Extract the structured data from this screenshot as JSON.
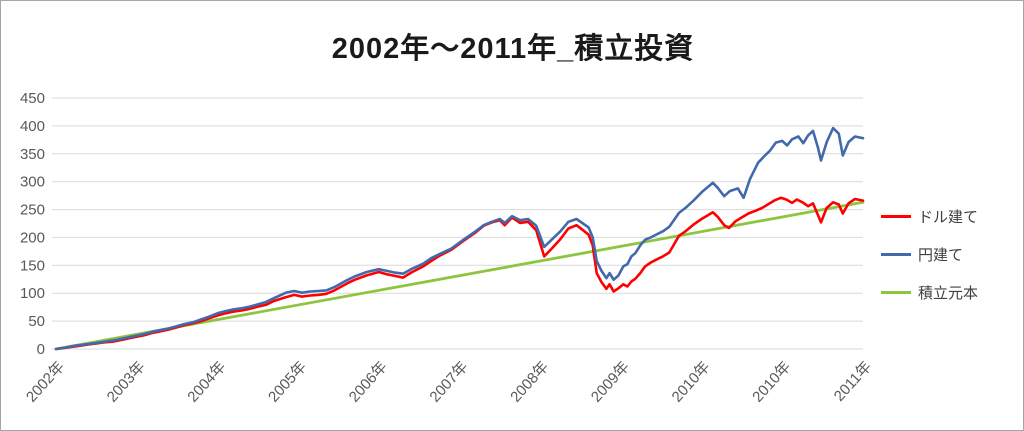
{
  "title": "2002年〜2011年_積立投資",
  "frame": {
    "border_color": "#a6a6a6",
    "background": "#ffffff"
  },
  "axes": {
    "y_tick_labels": [
      "0",
      "50",
      "100",
      "150",
      "200",
      "250",
      "300",
      "350",
      "400",
      "450"
    ],
    "x_tick_labels": [
      "2002年",
      "2003年",
      "2004年",
      "2005年",
      "2006年",
      "2007年",
      "2008年",
      "2009年",
      "2010年",
      "2010年",
      "2011年"
    ],
    "label_color": "#595959",
    "gridline_color": "#d9d9d9"
  },
  "chart_data": {
    "type": "line",
    "title": "2002年〜2011年_積立投資",
    "xlabel": "",
    "ylabel": "",
    "ylim": [
      0,
      450
    ],
    "y_ticks": [
      0,
      50,
      100,
      150,
      200,
      250,
      300,
      350,
      400,
      450
    ],
    "x_tick_labels": [
      "2002年",
      "2003年",
      "2004年",
      "2005年",
      "2006年",
      "2007年",
      "2008年",
      "2009年",
      "2010年",
      "2010年",
      "2011年"
    ],
    "grid": "horizontal-only",
    "legend_position": "right",
    "series": [
      {
        "name": "ドル建て",
        "color": "#ff0000",
        "stroke_width": 2.6,
        "points": [
          [
            0,
            0
          ],
          [
            0.01,
            2
          ],
          [
            0.02,
            4
          ],
          [
            0.03,
            6
          ],
          [
            0.04,
            8
          ],
          [
            0.05,
            10
          ],
          [
            0.06,
            12
          ],
          [
            0.07,
            13
          ],
          [
            0.08,
            16
          ],
          [
            0.09,
            19
          ],
          [
            0.1,
            22
          ],
          [
            0.11,
            25
          ],
          [
            0.12,
            29
          ],
          [
            0.13,
            32
          ],
          [
            0.14,
            35
          ],
          [
            0.15,
            39
          ],
          [
            0.16,
            43
          ],
          [
            0.17,
            46
          ],
          [
            0.18,
            50
          ],
          [
            0.19,
            55
          ],
          [
            0.2,
            60
          ],
          [
            0.21,
            64
          ],
          [
            0.22,
            67
          ],
          [
            0.23,
            69
          ],
          [
            0.24,
            72
          ],
          [
            0.25,
            76
          ],
          [
            0.26,
            79
          ],
          [
            0.27,
            86
          ],
          [
            0.285,
            93
          ],
          [
            0.295,
            97
          ],
          [
            0.305,
            94
          ],
          [
            0.315,
            96
          ],
          [
            0.325,
            97
          ],
          [
            0.335,
            99
          ],
          [
            0.345,
            105
          ],
          [
            0.36,
            117
          ],
          [
            0.37,
            124
          ],
          [
            0.385,
            132
          ],
          [
            0.4,
            138
          ],
          [
            0.41,
            134
          ],
          [
            0.42,
            131
          ],
          [
            0.43,
            128
          ],
          [
            0.44,
            137
          ],
          [
            0.455,
            148
          ],
          [
            0.465,
            158
          ],
          [
            0.475,
            167
          ],
          [
            0.49,
            178
          ],
          [
            0.505,
            194
          ],
          [
            0.52,
            209
          ],
          [
            0.53,
            221
          ],
          [
            0.54,
            227
          ],
          [
            0.55,
            231
          ],
          [
            0.556,
            222
          ],
          [
            0.565,
            236
          ],
          [
            0.575,
            226
          ],
          [
            0.585,
            228
          ],
          [
            0.595,
            213
          ],
          [
            0.605,
            166
          ],
          [
            0.615,
            181
          ],
          [
            0.625,
            197
          ],
          [
            0.635,
            216
          ],
          [
            0.645,
            222
          ],
          [
            0.653,
            213
          ],
          [
            0.66,
            205
          ],
          [
            0.665,
            186
          ],
          [
            0.67,
            136
          ],
          [
            0.676,
            120
          ],
          [
            0.682,
            108
          ],
          [
            0.686,
            116
          ],
          [
            0.691,
            103
          ],
          [
            0.697,
            109
          ],
          [
            0.703,
            116
          ],
          [
            0.708,
            112
          ],
          [
            0.713,
            121
          ],
          [
            0.718,
            126
          ],
          [
            0.724,
            136
          ],
          [
            0.73,
            148
          ],
          [
            0.737,
            155
          ],
          [
            0.745,
            161
          ],
          [
            0.752,
            166
          ],
          [
            0.76,
            173
          ],
          [
            0.772,
            203
          ],
          [
            0.78,
            211
          ],
          [
            0.79,
            223
          ],
          [
            0.8,
            233
          ],
          [
            0.814,
            245
          ],
          [
            0.82,
            237
          ],
          [
            0.828,
            222
          ],
          [
            0.834,
            217
          ],
          [
            0.842,
            229
          ],
          [
            0.85,
            236
          ],
          [
            0.858,
            243
          ],
          [
            0.867,
            248
          ],
          [
            0.875,
            253
          ],
          [
            0.882,
            259
          ],
          [
            0.89,
            266
          ],
          [
            0.898,
            271
          ],
          [
            0.905,
            268
          ],
          [
            0.912,
            262
          ],
          [
            0.918,
            268
          ],
          [
            0.925,
            263
          ],
          [
            0.932,
            256
          ],
          [
            0.938,
            261
          ],
          [
            0.944,
            241
          ],
          [
            0.948,
            227
          ],
          [
            0.955,
            253
          ],
          [
            0.963,
            263
          ],
          [
            0.97,
            259
          ],
          [
            0.975,
            243
          ],
          [
            0.982,
            261
          ],
          [
            0.99,
            269
          ],
          [
            1,
            266
          ]
        ]
      },
      {
        "name": "円建て",
        "color": "#4169ac",
        "stroke_width": 2.6,
        "points": [
          [
            0,
            0
          ],
          [
            0.01,
            2
          ],
          [
            0.02,
            5
          ],
          [
            0.03,
            7
          ],
          [
            0.04,
            9
          ],
          [
            0.05,
            11
          ],
          [
            0.06,
            13
          ],
          [
            0.07,
            15
          ],
          [
            0.08,
            18
          ],
          [
            0.09,
            21
          ],
          [
            0.1,
            24
          ],
          [
            0.11,
            27
          ],
          [
            0.12,
            31
          ],
          [
            0.13,
            34
          ],
          [
            0.14,
            37
          ],
          [
            0.15,
            41
          ],
          [
            0.16,
            45
          ],
          [
            0.17,
            48
          ],
          [
            0.18,
            53
          ],
          [
            0.19,
            58
          ],
          [
            0.2,
            64
          ],
          [
            0.21,
            68
          ],
          [
            0.22,
            71
          ],
          [
            0.23,
            73
          ],
          [
            0.24,
            76
          ],
          [
            0.25,
            80
          ],
          [
            0.26,
            84
          ],
          [
            0.27,
            91
          ],
          [
            0.285,
            101
          ],
          [
            0.295,
            104
          ],
          [
            0.305,
            101
          ],
          [
            0.315,
            103
          ],
          [
            0.325,
            104
          ],
          [
            0.335,
            105
          ],
          [
            0.345,
            111
          ],
          [
            0.36,
            123
          ],
          [
            0.37,
            130
          ],
          [
            0.385,
            138
          ],
          [
            0.4,
            143
          ],
          [
            0.41,
            140
          ],
          [
            0.42,
            137
          ],
          [
            0.43,
            135
          ],
          [
            0.44,
            143
          ],
          [
            0.455,
            153
          ],
          [
            0.465,
            163
          ],
          [
            0.475,
            170
          ],
          [
            0.49,
            180
          ],
          [
            0.505,
            196
          ],
          [
            0.52,
            211
          ],
          [
            0.53,
            222
          ],
          [
            0.54,
            228
          ],
          [
            0.55,
            233
          ],
          [
            0.556,
            226
          ],
          [
            0.565,
            238
          ],
          [
            0.575,
            231
          ],
          [
            0.585,
            233
          ],
          [
            0.595,
            221
          ],
          [
            0.605,
            183
          ],
          [
            0.615,
            197
          ],
          [
            0.625,
            211
          ],
          [
            0.635,
            228
          ],
          [
            0.645,
            233
          ],
          [
            0.653,
            225
          ],
          [
            0.66,
            218
          ],
          [
            0.665,
            200
          ],
          [
            0.67,
            158
          ],
          [
            0.676,
            140
          ],
          [
            0.682,
            127
          ],
          [
            0.686,
            136
          ],
          [
            0.691,
            124
          ],
          [
            0.697,
            132
          ],
          [
            0.703,
            148
          ],
          [
            0.708,
            152
          ],
          [
            0.713,
            166
          ],
          [
            0.718,
            172
          ],
          [
            0.724,
            186
          ],
          [
            0.73,
            196
          ],
          [
            0.737,
            200
          ],
          [
            0.745,
            206
          ],
          [
            0.752,
            211
          ],
          [
            0.76,
            219
          ],
          [
            0.772,
            244
          ],
          [
            0.78,
            253
          ],
          [
            0.79,
            266
          ],
          [
            0.8,
            281
          ],
          [
            0.814,
            298
          ],
          [
            0.82,
            289
          ],
          [
            0.828,
            274
          ],
          [
            0.835,
            283
          ],
          [
            0.845,
            288
          ],
          [
            0.852,
            271
          ],
          [
            0.86,
            305
          ],
          [
            0.87,
            334
          ],
          [
            0.878,
            346
          ],
          [
            0.885,
            356
          ],
          [
            0.892,
            370
          ],
          [
            0.9,
            373
          ],
          [
            0.906,
            365
          ],
          [
            0.912,
            376
          ],
          [
            0.92,
            381
          ],
          [
            0.926,
            369
          ],
          [
            0.932,
            383
          ],
          [
            0.938,
            391
          ],
          [
            0.944,
            362
          ],
          [
            0.948,
            338
          ],
          [
            0.955,
            371
          ],
          [
            0.963,
            396
          ],
          [
            0.97,
            386
          ],
          [
            0.975,
            347
          ],
          [
            0.982,
            371
          ],
          [
            0.99,
            381
          ],
          [
            1,
            378
          ]
        ]
      },
      {
        "name": "積立元本",
        "color": "#8cc63f",
        "stroke_width": 2.8,
        "points": [
          [
            0,
            0
          ],
          [
            1,
            263
          ]
        ]
      }
    ]
  },
  "legend": {
    "items": [
      {
        "label": "ドル建て",
        "color": "#ff0000"
      },
      {
        "label": "円建て",
        "color": "#4169ac"
      },
      {
        "label": "積立元本",
        "color": "#8cc63f"
      }
    ]
  }
}
